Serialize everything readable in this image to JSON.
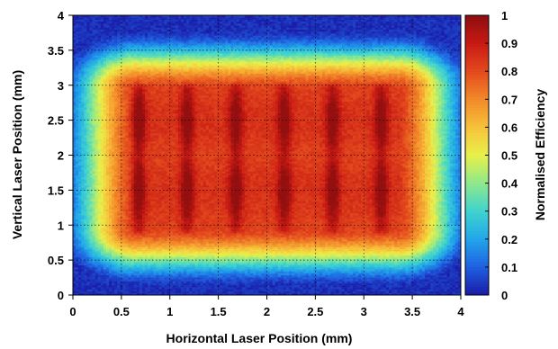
{
  "chart_data": {
    "type": "heatmap",
    "xlabel": "Horizontal Laser Position (mm)",
    "ylabel": "Vertical Laser Position (mm)",
    "colorbar_label": "Normalised Efficiency",
    "xlim": [
      0,
      4
    ],
    "ylim": [
      0,
      4
    ],
    "zlim": [
      0,
      1
    ],
    "x_ticks": [
      "0",
      "0.5",
      "1",
      "1.5",
      "2",
      "2.5",
      "3",
      "3.5",
      "4"
    ],
    "y_ticks": [
      "0",
      "0.5",
      "1",
      "1.5",
      "2",
      "2.5",
      "3",
      "3.5",
      "4"
    ],
    "colorbar_ticks": [
      "0",
      "0.1",
      "0.2",
      "0.3",
      "0.4",
      "0.5",
      "0.6",
      "0.7",
      "0.8",
      "0.9",
      "1"
    ],
    "grid": true,
    "colormap": [
      "#1a1aa6",
      "#1f5fe0",
      "#21a6ea",
      "#3fd3cf",
      "#8ee88c",
      "#e8f04a",
      "#f7c23a",
      "#f28a2a",
      "#e3491d",
      "#c81a14",
      "#8e0e0e"
    ],
    "plateau_region": {
      "x": [
        0.65,
        3.35
      ],
      "y": [
        0.95,
        2.95
      ],
      "value": 0.78
    },
    "hot_columns_x": [
      0.68,
      1.18,
      1.68,
      2.18,
      2.68,
      3.18
    ],
    "hot_rows_y": [
      1.5,
      2.5
    ],
    "hot_spot_value": 0.95,
    "grid_steps_x": 140,
    "grid_steps_y": 140
  }
}
